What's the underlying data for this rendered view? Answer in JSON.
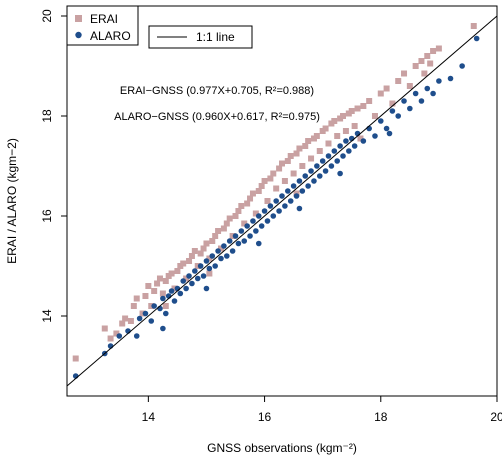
{
  "chart_data": {
    "type": "scatter",
    "xlabel": "GNSS observations (kgm⁻²)",
    "ylabel": "ERAI / ALARO (kgm−2)",
    "xlim": [
      12.6,
      20.0
    ],
    "ylim": [
      12.4,
      20.2
    ],
    "x_ticks": [
      14,
      16,
      18,
      20
    ],
    "y_ticks": [
      14,
      16,
      18,
      20
    ],
    "reference_line": {
      "label": "1:1 line",
      "slope": 1,
      "intercept": 0,
      "color": "#000000"
    },
    "annotations": [
      "ERAI−GNSS (0.977X+0.705, R²=0.988)",
      "ALARO−GNSS (0.960X+0.617, R²=0.975)"
    ],
    "legend_position": "top-left",
    "series": [
      {
        "name": "ERAI",
        "marker": "square",
        "color": "#c9a1a2",
        "points": [
          [
            12.75,
            13.15
          ],
          [
            13.25,
            13.75
          ],
          [
            13.35,
            13.55
          ],
          [
            13.45,
            13.65
          ],
          [
            13.55,
            13.85
          ],
          [
            13.6,
            13.95
          ],
          [
            13.7,
            13.9
          ],
          [
            13.75,
            14.2
          ],
          [
            13.8,
            14.35
          ],
          [
            13.9,
            14.05
          ],
          [
            13.95,
            14.4
          ],
          [
            14.0,
            14.6
          ],
          [
            14.05,
            14.2
          ],
          [
            14.1,
            14.5
          ],
          [
            14.15,
            14.65
          ],
          [
            14.2,
            14.75
          ],
          [
            14.25,
            14.45
          ],
          [
            14.3,
            14.7
          ],
          [
            14.35,
            14.8
          ],
          [
            14.4,
            14.85
          ],
          [
            14.45,
            14.55
          ],
          [
            14.5,
            14.9
          ],
          [
            14.55,
            15.0
          ],
          [
            14.6,
            15.05
          ],
          [
            14.65,
            14.75
          ],
          [
            14.7,
            15.1
          ],
          [
            14.75,
            15.2
          ],
          [
            14.8,
            15.3
          ],
          [
            14.85,
            15.0
          ],
          [
            14.9,
            15.25
          ],
          [
            14.95,
            15.35
          ],
          [
            15.0,
            15.45
          ],
          [
            15.05,
            15.15
          ],
          [
            15.1,
            15.5
          ],
          [
            15.15,
            15.6
          ],
          [
            15.2,
            15.7
          ],
          [
            15.25,
            15.35
          ],
          [
            15.3,
            15.75
          ],
          [
            15.35,
            15.85
          ],
          [
            15.4,
            15.95
          ],
          [
            15.45,
            15.6
          ],
          [
            15.5,
            16.0
          ],
          [
            15.55,
            16.1
          ],
          [
            15.6,
            16.2
          ],
          [
            15.65,
            15.85
          ],
          [
            15.7,
            16.25
          ],
          [
            15.75,
            16.35
          ],
          [
            15.8,
            16.45
          ],
          [
            15.85,
            16.05
          ],
          [
            15.9,
            16.5
          ],
          [
            15.95,
            16.6
          ],
          [
            16.0,
            16.7
          ],
          [
            16.05,
            16.3
          ],
          [
            16.1,
            16.75
          ],
          [
            16.15,
            16.85
          ],
          [
            16.2,
            16.55
          ],
          [
            16.25,
            16.95
          ],
          [
            16.3,
            17.05
          ],
          [
            16.35,
            16.7
          ],
          [
            16.4,
            17.1
          ],
          [
            16.45,
            17.2
          ],
          [
            16.5,
            16.85
          ],
          [
            16.55,
            17.25
          ],
          [
            16.6,
            17.35
          ],
          [
            16.65,
            17.0
          ],
          [
            16.7,
            17.4
          ],
          [
            16.75,
            17.5
          ],
          [
            16.8,
            17.15
          ],
          [
            16.85,
            17.55
          ],
          [
            16.9,
            17.6
          ],
          [
            16.95,
            17.3
          ],
          [
            17.0,
            17.7
          ],
          [
            17.05,
            17.75
          ],
          [
            17.1,
            17.45
          ],
          [
            17.15,
            17.85
          ],
          [
            17.2,
            17.9
          ],
          [
            17.25,
            17.6
          ],
          [
            17.3,
            17.95
          ],
          [
            17.35,
            18.0
          ],
          [
            17.4,
            17.7
          ],
          [
            17.45,
            18.05
          ],
          [
            17.5,
            18.1
          ],
          [
            17.55,
            17.8
          ],
          [
            17.6,
            18.15
          ],
          [
            17.7,
            18.2
          ],
          [
            17.8,
            18.3
          ],
          [
            17.9,
            18.0
          ],
          [
            18.0,
            18.45
          ],
          [
            18.1,
            18.55
          ],
          [
            18.2,
            18.25
          ],
          [
            18.3,
            18.7
          ],
          [
            18.4,
            18.85
          ],
          [
            18.5,
            18.6
          ],
          [
            18.6,
            19.0
          ],
          [
            18.7,
            19.1
          ],
          [
            18.75,
            18.85
          ],
          [
            18.8,
            19.2
          ],
          [
            18.85,
            19.05
          ],
          [
            18.9,
            19.3
          ],
          [
            19.0,
            19.35
          ],
          [
            19.6,
            19.8
          ],
          [
            15.05,
            14.85
          ],
          [
            14.3,
            14.2
          ],
          [
            16.55,
            16.45
          ],
          [
            17.65,
            17.55
          ]
        ]
      },
      {
        "name": "ALARO",
        "marker": "circle",
        "color": "#1f4e8c",
        "points": [
          [
            12.75,
            12.8
          ],
          [
            13.25,
            13.25
          ],
          [
            13.35,
            13.4
          ],
          [
            13.5,
            13.6
          ],
          [
            13.65,
            13.7
          ],
          [
            13.8,
            13.6
          ],
          [
            13.85,
            13.95
          ],
          [
            13.95,
            14.05
          ],
          [
            14.05,
            13.9
          ],
          [
            14.1,
            14.2
          ],
          [
            14.2,
            14.15
          ],
          [
            14.25,
            14.35
          ],
          [
            14.3,
            14.05
          ],
          [
            14.35,
            14.4
          ],
          [
            14.4,
            14.5
          ],
          [
            14.45,
            14.3
          ],
          [
            14.5,
            14.55
          ],
          [
            14.55,
            14.45
          ],
          [
            14.6,
            14.7
          ],
          [
            14.65,
            14.55
          ],
          [
            14.7,
            14.8
          ],
          [
            14.75,
            14.65
          ],
          [
            14.8,
            14.9
          ],
          [
            14.85,
            14.75
          ],
          [
            14.9,
            15.0
          ],
          [
            14.95,
            14.8
          ],
          [
            15.0,
            15.1
          ],
          [
            15.05,
            14.95
          ],
          [
            15.1,
            15.2
          ],
          [
            15.15,
            15.0
          ],
          [
            15.2,
            15.3
          ],
          [
            15.25,
            15.15
          ],
          [
            15.3,
            15.4
          ],
          [
            15.35,
            15.2
          ],
          [
            15.4,
            15.5
          ],
          [
            15.45,
            15.3
          ],
          [
            15.5,
            15.6
          ],
          [
            15.55,
            15.45
          ],
          [
            15.6,
            15.7
          ],
          [
            15.65,
            15.5
          ],
          [
            15.7,
            15.8
          ],
          [
            15.75,
            15.6
          ],
          [
            15.8,
            15.9
          ],
          [
            15.85,
            15.7
          ],
          [
            15.9,
            16.0
          ],
          [
            15.95,
            15.8
          ],
          [
            16.0,
            16.1
          ],
          [
            16.05,
            15.9
          ],
          [
            16.1,
            16.2
          ],
          [
            16.15,
            16.0
          ],
          [
            16.2,
            16.3
          ],
          [
            16.25,
            16.1
          ],
          [
            16.3,
            16.4
          ],
          [
            16.35,
            16.2
          ],
          [
            16.4,
            16.5
          ],
          [
            16.45,
            16.3
          ],
          [
            16.5,
            16.6
          ],
          [
            16.55,
            16.4
          ],
          [
            16.6,
            16.7
          ],
          [
            16.65,
            16.5
          ],
          [
            16.7,
            16.8
          ],
          [
            16.75,
            16.6
          ],
          [
            16.8,
            16.9
          ],
          [
            16.85,
            16.7
          ],
          [
            16.9,
            17.0
          ],
          [
            16.95,
            16.8
          ],
          [
            17.0,
            17.1
          ],
          [
            17.05,
            16.9
          ],
          [
            17.1,
            17.2
          ],
          [
            17.15,
            17.0
          ],
          [
            17.2,
            17.3
          ],
          [
            17.25,
            17.1
          ],
          [
            17.3,
            17.4
          ],
          [
            17.35,
            17.2
          ],
          [
            17.4,
            17.5
          ],
          [
            17.45,
            17.3
          ],
          [
            17.5,
            17.55
          ],
          [
            17.55,
            17.4
          ],
          [
            17.6,
            17.65
          ],
          [
            17.7,
            17.5
          ],
          [
            17.8,
            17.75
          ],
          [
            17.9,
            17.6
          ],
          [
            18.0,
            17.9
          ],
          [
            18.1,
            17.75
          ],
          [
            18.2,
            18.1
          ],
          [
            18.3,
            18.0
          ],
          [
            18.4,
            18.3
          ],
          [
            18.5,
            18.15
          ],
          [
            18.6,
            18.45
          ],
          [
            18.7,
            18.3
          ],
          [
            18.8,
            18.55
          ],
          [
            18.9,
            18.45
          ],
          [
            19.0,
            18.7
          ],
          [
            19.2,
            18.75
          ],
          [
            19.4,
            19.0
          ],
          [
            19.65,
            19.55
          ],
          [
            14.25,
            13.75
          ],
          [
            15.0,
            14.55
          ],
          [
            15.9,
            15.45
          ],
          [
            16.6,
            16.15
          ],
          [
            17.3,
            16.85
          ],
          [
            18.15,
            17.65
          ]
        ]
      }
    ]
  }
}
